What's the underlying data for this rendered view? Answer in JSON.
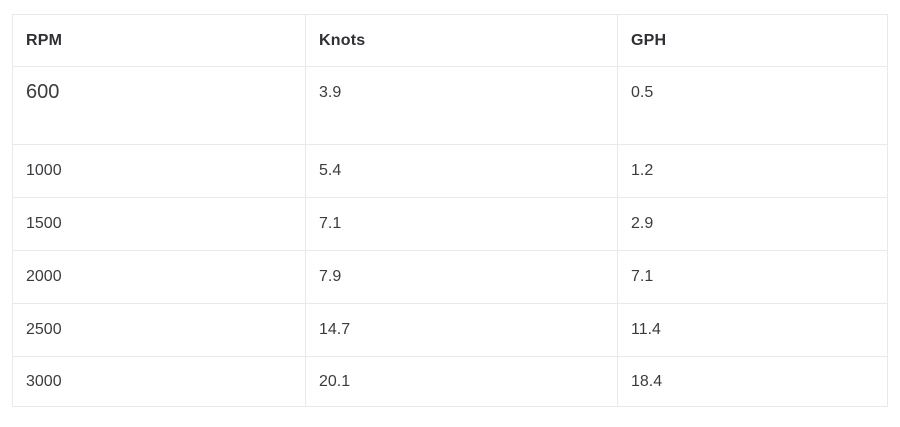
{
  "chart_data": {
    "type": "table",
    "title": "",
    "columns": [
      "RPM",
      "Knots",
      "GPH"
    ],
    "rows": [
      {
        "rpm": "600",
        "knots": "3.9",
        "gph": "0.5"
      },
      {
        "rpm": "1000",
        "knots": "5.4",
        "gph": "1.2"
      },
      {
        "rpm": "1500",
        "knots": "7.1",
        "gph": "2.9"
      },
      {
        "rpm": "2000",
        "knots": "7.9",
        "gph": "7.1"
      },
      {
        "rpm": "2500",
        "knots": "14.7",
        "gph": "11.4"
      },
      {
        "rpm": "3000",
        "knots": "20.1",
        "gph": "18.4"
      }
    ]
  },
  "table": {
    "headers": {
      "rpm": "RPM",
      "knots": "Knots",
      "gph": "GPH"
    },
    "rows": [
      {
        "rpm": "600",
        "knots": "3.9",
        "gph": "0.5"
      },
      {
        "rpm": "1000",
        "knots": "5.4",
        "gph": "1.2"
      },
      {
        "rpm": "1500",
        "knots": "7.1",
        "gph": "2.9"
      },
      {
        "rpm": "2000",
        "knots": "7.9",
        "gph": "7.1"
      },
      {
        "rpm": "2500",
        "knots": "14.7",
        "gph": "11.4"
      },
      {
        "rpm": "3000",
        "knots": "20.1",
        "gph": "18.4"
      }
    ]
  },
  "colors": {
    "background": "#ffffff",
    "border": "#e9e9e9",
    "header_text": "#2f3034",
    "body_text": "#3c3c40"
  }
}
